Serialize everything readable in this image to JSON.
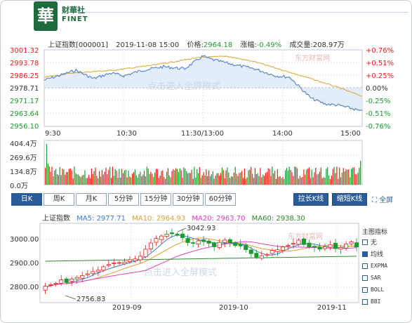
{
  "brand": {
    "logo_char": "華",
    "name_cn": "财華社",
    "name_en": "FINET"
  },
  "info": {
    "index": "上证指数[000001]",
    "datetime": "2019-11-08 15:00",
    "price_label": "价格:",
    "price": "2964.18",
    "change_label": "涨幅:",
    "change": "-0.49%",
    "volume_label": "成交量:",
    "volume": "208.97万"
  },
  "intraday": {
    "price_ticks": [
      "3001.32",
      "2993.78",
      "2986.25",
      "2978.71",
      "2971.17",
      "2963.64",
      "2956.10"
    ],
    "pct_ticks": [
      "+0.76%",
      "+0.51%",
      "+0.25%",
      "0.00%",
      "-0.25%",
      "-0.51%",
      "-0.76%"
    ],
    "time_ticks": [
      "9:30",
      "10:30",
      "11:30/13:00",
      "14:00",
      "15:00"
    ],
    "volume_ticks": [
      "404.4万",
      "269.6万",
      "134.8万",
      "0.0万"
    ],
    "watermark": "点击进入全屏模式",
    "source_watermark": "东方财富网"
  },
  "tabs": [
    {
      "label": "日K",
      "active": true
    },
    {
      "label": "周K",
      "active": false
    },
    {
      "label": "月K",
      "active": false
    },
    {
      "label": "5分钟",
      "active": false
    },
    {
      "label": "15分钟",
      "active": false
    },
    {
      "label": "30分钟",
      "active": false
    },
    {
      "label": "60分钟",
      "active": false
    }
  ],
  "buttons": {
    "stretch": "拉长K线",
    "shrink": "缩短K线",
    "fullscreen": "全屏"
  },
  "kline": {
    "legend": {
      "name": "上证指数",
      "ma5": "MA5: 2977.71",
      "ma10": "MA10: 2964.93",
      "ma20": "MA20: 2963.70",
      "ma60": "MA60: 2938.30"
    },
    "price_ticks": [
      "3000.00",
      "2900.00",
      "2800.00"
    ],
    "date_ticks": [
      "2019-09",
      "2019-10",
      "2019-11"
    ],
    "high_label": "3042.93",
    "low_label": "2756.83",
    "watermark": "点击进入全屏模式",
    "source_watermark": "东方财富网"
  },
  "side_panel": {
    "title": "主图指标",
    "items": [
      {
        "label": "无",
        "checked": false
      },
      {
        "label": "均线",
        "checked": true
      },
      {
        "label": "EXPMA",
        "checked": false
      },
      {
        "label": "SAR",
        "checked": false
      },
      {
        "label": "BOLL",
        "checked": false
      },
      {
        "label": "BBI",
        "checked": false
      }
    ]
  },
  "colors": {
    "up": "#e8211b",
    "down": "#1a9b2c",
    "price_line": "#5b88c6",
    "avg_line": "#e0b050",
    "ma5": "#3a7bd5",
    "ma10": "#e0a030",
    "ma20": "#e040c0",
    "ma60": "#2a8a2a"
  }
}
